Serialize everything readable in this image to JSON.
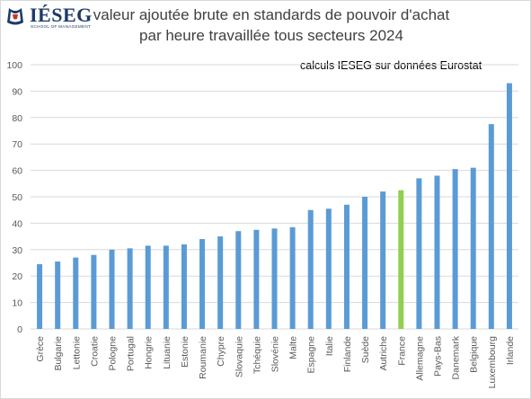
{
  "logo": {
    "name": "IÉSEG",
    "subtitle": "SCHOOL OF MANAGEMENT"
  },
  "chart_data": {
    "type": "bar",
    "title_lines": [
      "valeur ajoutée brute en standards de pouvoir d'achat",
      "par heure travaillée tous secteurs 2024"
    ],
    "annotation": "calculs IESEG sur données Eurostat",
    "xlabel": "",
    "ylabel": "",
    "ylim": [
      0,
      100
    ],
    "yticks": [
      0,
      10,
      20,
      30,
      40,
      50,
      60,
      70,
      80,
      90,
      100
    ],
    "grid": true,
    "legend": "none",
    "bar_color": "#5b9bd5",
    "highlight_color": "#92d050",
    "highlight_category": "France",
    "categories": [
      "Grèce",
      "Bulgarie",
      "Lettonie",
      "Croatie",
      "Pologne",
      "Portugal",
      "Hongrie",
      "Lituanie",
      "Estonie",
      "Roumanie",
      "Chypre",
      "Slovaquie",
      "Tchéquie",
      "Slovénie",
      "Malte",
      "Espagne",
      "Italie",
      "Finlande",
      "Suède",
      "Autriche",
      "France",
      "Allemagne",
      "Pays-Bas",
      "Danemark",
      "Belgique",
      "Luxembourg",
      "Irlande"
    ],
    "values": [
      24.5,
      25.5,
      27,
      28,
      30,
      30.5,
      31.5,
      31.5,
      32,
      34,
      35,
      37,
      37.5,
      38,
      38.5,
      45,
      45.5,
      47,
      50,
      52,
      52.5,
      57,
      58,
      60.5,
      61,
      77.5,
      93
    ]
  }
}
